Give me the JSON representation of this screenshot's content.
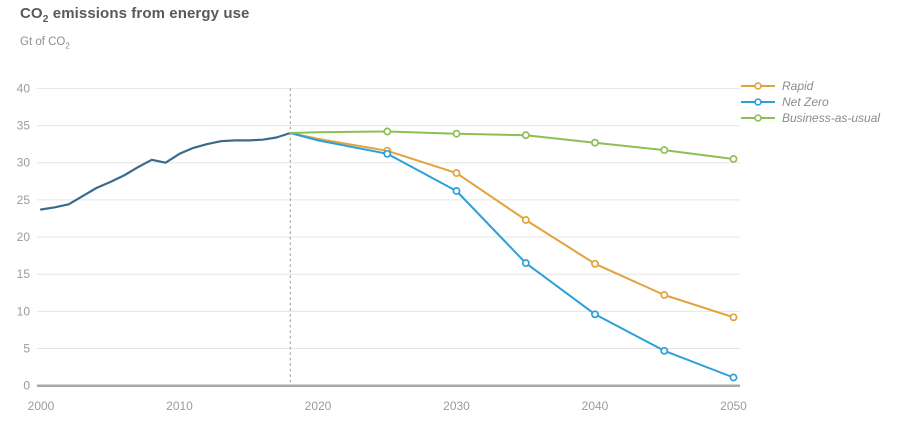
{
  "header": {
    "title_prefix": "CO",
    "title_sub": "2",
    "title_suffix": " emissions from energy use",
    "unit_prefix": "Gt of CO",
    "unit_sub": "2"
  },
  "chart_data": {
    "type": "line",
    "title": "CO2 emissions from energy use",
    "ylabel": "Gt of CO2",
    "xlabel": "",
    "ylim": [
      0,
      40
    ],
    "yticks": [
      0,
      5,
      10,
      15,
      20,
      25,
      30,
      35,
      40
    ],
    "xlim": [
      2000,
      2050
    ],
    "xticks": [
      2000,
      2010,
      2020,
      2030,
      2040,
      2050
    ],
    "grid": "horizontal-only",
    "legend_position": "top-right",
    "forecast_divider_x": 2018,
    "colors": {
      "history": "#3a6b8c",
      "rapid": "#e3a23d",
      "net_zero": "#2da0d8",
      "business_as_usual": "#8fbf54",
      "gridline": "#e5e5e5",
      "axis": "#a8a8a8",
      "divider": "#a6a6a6",
      "tick_label": "#9b9b9b"
    },
    "series": [
      {
        "id": "history",
        "color": "#3a6b8c",
        "in_legend": false,
        "x": [
          2000,
          2001,
          2002,
          2003,
          2004,
          2005,
          2006,
          2007,
          2008,
          2009,
          2010,
          2011,
          2012,
          2013,
          2014,
          2015,
          2016,
          2017,
          2018
        ],
        "values": [
          23.7,
          24.0,
          24.4,
          25.5,
          26.6,
          27.4,
          28.3,
          29.4,
          30.4,
          30.0,
          31.2,
          32.0,
          32.5,
          32.9,
          33.0,
          33.0,
          33.1,
          33.4,
          34.0
        ]
      },
      {
        "id": "rapid",
        "name": "Rapid",
        "color": "#e3a23d",
        "in_legend": true,
        "x": [
          2018,
          2020,
          2025,
          2030,
          2035,
          2040,
          2045,
          2050
        ],
        "values": [
          34.0,
          33.2,
          31.6,
          28.6,
          22.3,
          16.4,
          12.2,
          9.2
        ],
        "markers_at": [
          2025,
          2030,
          2035,
          2040,
          2045,
          2050
        ]
      },
      {
        "id": "net-zero",
        "name": "Net Zero",
        "color": "#2da0d8",
        "in_legend": true,
        "x": [
          2018,
          2020,
          2025,
          2030,
          2035,
          2040,
          2045,
          2050
        ],
        "values": [
          34.0,
          33.0,
          31.2,
          26.2,
          16.5,
          9.6,
          4.7,
          1.1
        ],
        "markers_at": [
          2025,
          2030,
          2035,
          2040,
          2045,
          2050
        ]
      },
      {
        "id": "business-as-usual",
        "name": "Business-as-usual",
        "color": "#8fbf54",
        "in_legend": true,
        "x": [
          2018,
          2020,
          2025,
          2030,
          2035,
          2040,
          2045,
          2050
        ],
        "values": [
          34.0,
          34.1,
          34.2,
          33.9,
          33.7,
          32.7,
          31.7,
          30.5
        ],
        "markers_at": [
          2025,
          2030,
          2035,
          2040,
          2045,
          2050
        ]
      }
    ]
  }
}
